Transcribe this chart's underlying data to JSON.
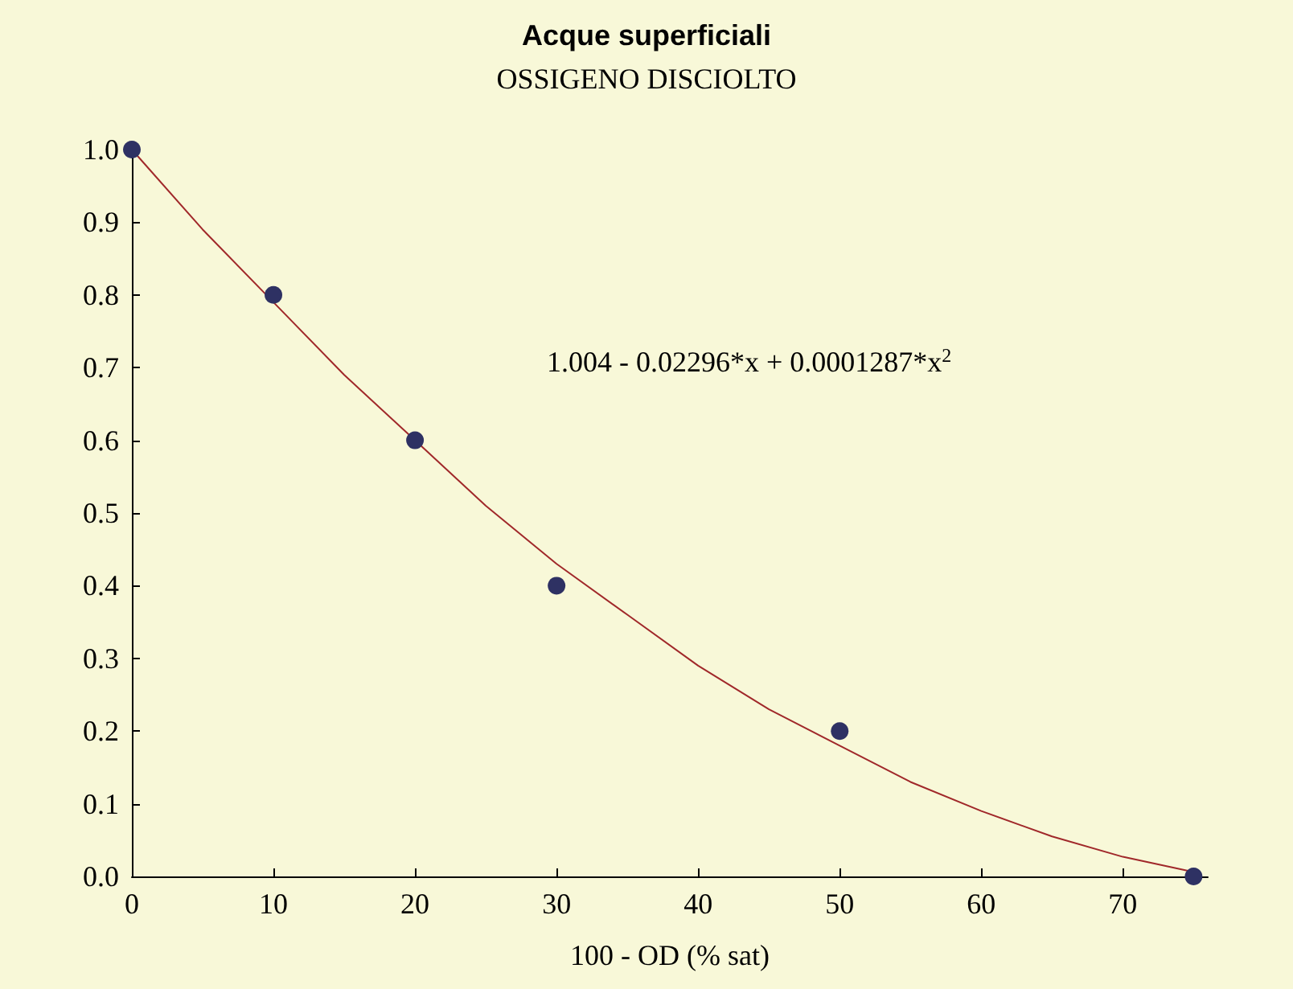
{
  "chart_data": {
    "type": "scatter",
    "title": "Acque superficiali",
    "subtitle": "OSSIGENO DISCIOLTO",
    "xlabel": "100 - OD (% sat)",
    "xlim": [
      0,
      76
    ],
    "xticks": [
      0,
      10,
      20,
      30,
      40,
      50,
      60,
      70
    ],
    "ylim": [
      0,
      1
    ],
    "yticks": [
      {
        "value": 0,
        "label": "0.0"
      },
      0.1,
      0.2,
      0.3,
      0.4,
      0.5,
      0.6,
      0.7,
      0.8,
      0.9,
      {
        "value": 1,
        "label": "1.0"
      }
    ],
    "grid": false,
    "series": [
      {
        "type": "line",
        "color": "#a0282a",
        "line_style": "solid",
        "marker": "none",
        "x": [
          0,
          5,
          10,
          15,
          20,
          25,
          30,
          35,
          40,
          45,
          50,
          55,
          60,
          65,
          70,
          75
        ],
        "values": [
          1.0,
          0.89,
          0.79,
          0.69,
          0.6,
          0.51,
          0.43,
          0.36,
          0.29,
          0.23,
          0.18,
          0.13,
          0.09,
          0.055,
          0.027,
          0.006
        ]
      },
      {
        "color": "#2e3163",
        "marker": "circle",
        "x": [
          0,
          10,
          20,
          30,
          50,
          75
        ],
        "values": [
          1.0,
          0.8,
          0.6,
          0.4,
          0.2,
          0.0
        ]
      }
    ],
    "annotations": [
      "1.004 - 0.02296*x + 0.0001287*x$^{2}$"
    ]
  }
}
